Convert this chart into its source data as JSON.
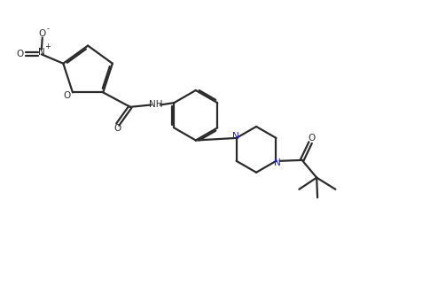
{
  "background_color": "#ffffff",
  "line_color": "#2b2b2b",
  "nitrogen_color": "#1a1acd",
  "line_width": 1.6,
  "figsize": [
    4.76,
    3.31
  ],
  "dpi": 100,
  "xlim": [
    0,
    10
  ],
  "ylim": [
    0,
    7
  ]
}
